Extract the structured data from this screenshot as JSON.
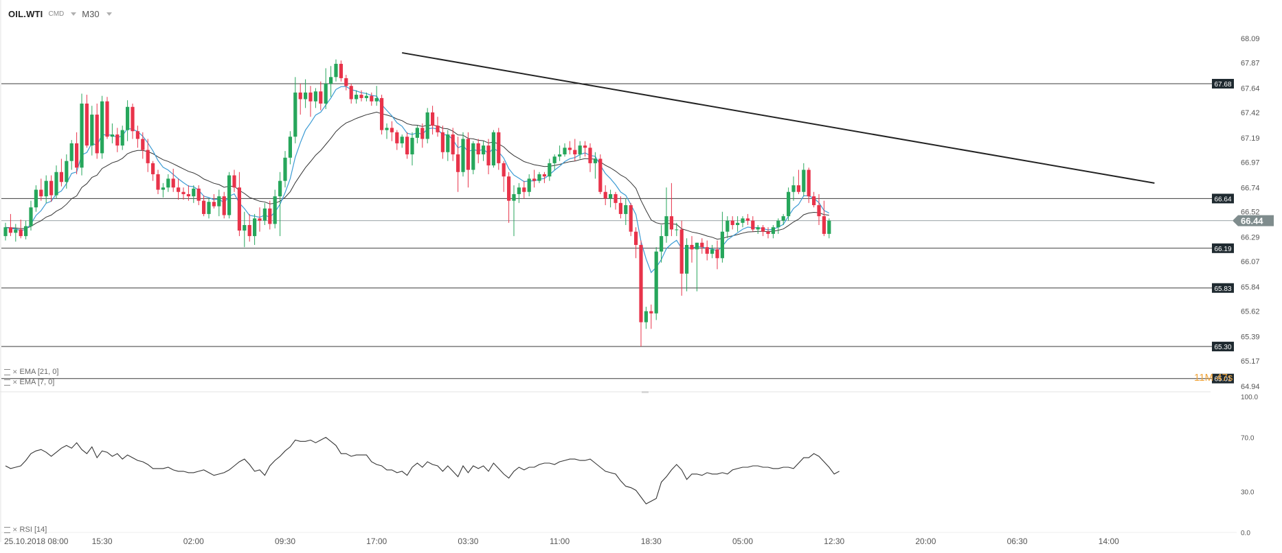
{
  "header": {
    "symbol": "OIL.WTI",
    "type": "CMD",
    "timeframe": "M30"
  },
  "indicators": {
    "ema_slow": "EMA [21, 0]",
    "ema_fast": "EMA [7, 0]",
    "rsi": "RSI [14]"
  },
  "countdown": "11M 47s",
  "colors": {
    "up": "#26a65b",
    "down": "#e8334a",
    "ema_fast": "#3b9bd4",
    "ema_slow": "#333333",
    "trendline": "#222222",
    "label_bg": "#1f2a30",
    "current_bg": "#7f8c8d",
    "countdown": "#f0a43a"
  },
  "chart_data": {
    "type": "candlestick",
    "price_axis": {
      "range": [
        64.94,
        68.09
      ],
      "ticks": [
        "68.09",
        "67.87",
        "67.64",
        "67.42",
        "67.19",
        "66.97",
        "66.74",
        "66.52",
        "66.29",
        "66.07",
        "65.84",
        "65.62",
        "65.39",
        "65.17",
        "64.94"
      ]
    },
    "time_axis": {
      "labels": [
        "25.10.2018  08:00",
        "15:30",
        "02:00",
        "09:30",
        "17:00",
        "03:30",
        "11:00",
        "18:30",
        "05:00",
        "12:30",
        "20:00",
        "06:30",
        "14:00"
      ],
      "label_bar_index": [
        1,
        19,
        37,
        55,
        73,
        91,
        109,
        127,
        145,
        163,
        181,
        199,
        217
      ]
    },
    "horizontal_levels": [
      67.68,
      66.64,
      66.19,
      65.83,
      65.3,
      65.01
    ],
    "level_labels": [
      "67.68",
      "66.64",
      "66.19",
      "65.83",
      "65.30",
      "65.01"
    ],
    "current_price": 66.44,
    "current_label": "66.44",
    "trendline": {
      "from": {
        "bar": 78,
        "price": 67.96
      },
      "to": {
        "bar": 226,
        "price": 66.78
      }
    },
    "ema": [
      "EMA [21, 0]",
      "EMA [7, 0]"
    ],
    "candles_ohlc": [
      [
        66.3,
        66.42,
        66.26,
        66.38
      ],
      [
        66.38,
        66.5,
        66.3,
        66.33
      ],
      [
        66.33,
        66.41,
        66.25,
        66.36
      ],
      [
        66.36,
        66.45,
        66.28,
        66.3
      ],
      [
        66.3,
        66.44,
        66.27,
        66.39
      ],
      [
        66.39,
        66.62,
        66.35,
        66.56
      ],
      [
        66.56,
        66.76,
        66.52,
        66.72
      ],
      [
        66.72,
        66.82,
        66.62,
        66.66
      ],
      [
        66.66,
        66.85,
        66.6,
        66.8
      ],
      [
        66.8,
        66.85,
        66.61,
        66.67
      ],
      [
        66.67,
        66.94,
        66.64,
        66.88
      ],
      [
        66.88,
        67.0,
        66.75,
        66.79
      ],
      [
        66.79,
        67.04,
        66.73,
        66.98
      ],
      [
        66.98,
        67.17,
        66.9,
        67.14
      ],
      [
        67.14,
        67.24,
        66.86,
        66.92
      ],
      [
        66.92,
        67.59,
        66.85,
        67.5
      ],
      [
        67.5,
        67.58,
        67.1,
        67.12
      ],
      [
        67.12,
        67.48,
        67.03,
        67.4
      ],
      [
        67.4,
        67.5,
        67.0,
        67.05
      ],
      [
        67.05,
        67.57,
        67.0,
        67.52
      ],
      [
        67.52,
        67.56,
        67.18,
        67.2
      ],
      [
        67.2,
        67.32,
        67.14,
        67.22
      ],
      [
        67.22,
        67.28,
        67.06,
        67.12
      ],
      [
        67.12,
        67.3,
        67.08,
        67.26
      ],
      [
        67.26,
        67.53,
        67.16,
        67.47
      ],
      [
        67.47,
        67.5,
        67.18,
        67.25
      ],
      [
        67.25,
        67.3,
        67.1,
        67.18
      ],
      [
        67.18,
        67.24,
        67.0,
        67.08
      ],
      [
        67.08,
        67.18,
        66.88,
        66.96
      ],
      [
        66.96,
        66.98,
        66.8,
        66.86
      ],
      [
        66.86,
        66.9,
        66.68,
        66.72
      ],
      [
        66.72,
        66.78,
        66.65,
        66.74
      ],
      [
        66.74,
        66.86,
        66.7,
        66.82
      ],
      [
        66.82,
        66.91,
        66.7,
        66.74
      ],
      [
        66.74,
        66.82,
        66.63,
        66.7
      ],
      [
        66.7,
        66.74,
        66.63,
        66.68
      ],
      [
        66.68,
        66.76,
        66.62,
        66.66
      ],
      [
        66.66,
        66.76,
        66.6,
        66.73
      ],
      [
        66.73,
        66.76,
        66.58,
        66.62
      ],
      [
        66.62,
        66.67,
        66.48,
        66.5
      ],
      [
        66.5,
        66.64,
        66.46,
        66.61
      ],
      [
        66.61,
        66.68,
        66.55,
        66.57
      ],
      [
        66.57,
        66.72,
        66.48,
        66.66
      ],
      [
        66.66,
        66.7,
        66.46,
        66.49
      ],
      [
        66.49,
        66.88,
        66.46,
        66.85
      ],
      [
        66.85,
        66.9,
        66.7,
        66.74
      ],
      [
        66.74,
        66.88,
        66.3,
        66.35
      ],
      [
        66.35,
        66.52,
        66.2,
        66.4
      ],
      [
        66.4,
        66.5,
        66.25,
        66.3
      ],
      [
        66.3,
        66.5,
        66.22,
        66.46
      ],
      [
        66.46,
        66.56,
        66.34,
        66.44
      ],
      [
        66.44,
        66.6,
        66.4,
        66.55
      ],
      [
        66.55,
        66.62,
        66.36,
        66.41
      ],
      [
        66.41,
        66.72,
        66.37,
        66.66
      ],
      [
        66.66,
        66.88,
        66.3,
        66.8
      ],
      [
        66.8,
        67.07,
        66.74,
        67.01
      ],
      [
        67.01,
        67.25,
        66.95,
        67.2
      ],
      [
        67.2,
        67.74,
        67.14,
        67.6
      ],
      [
        67.6,
        67.68,
        67.4,
        67.54
      ],
      [
        67.54,
        67.72,
        67.46,
        67.6
      ],
      [
        67.6,
        67.66,
        67.38,
        67.52
      ],
      [
        67.52,
        67.64,
        67.46,
        67.61
      ],
      [
        67.61,
        67.7,
        67.44,
        67.5
      ],
      [
        67.5,
        67.82,
        67.45,
        67.68
      ],
      [
        67.68,
        67.84,
        67.56,
        67.74
      ],
      [
        67.74,
        67.9,
        67.7,
        67.86
      ],
      [
        67.86,
        67.89,
        67.7,
        67.73
      ],
      [
        67.73,
        67.76,
        67.62,
        67.66
      ],
      [
        67.66,
        67.68,
        67.5,
        67.54
      ],
      [
        67.54,
        67.62,
        67.5,
        67.58
      ],
      [
        67.58,
        67.62,
        67.52,
        67.55
      ],
      [
        67.55,
        67.6,
        67.52,
        67.57
      ],
      [
        67.57,
        67.6,
        67.48,
        67.52
      ],
      [
        67.52,
        67.66,
        67.48,
        67.55
      ],
      [
        67.55,
        67.58,
        67.22,
        67.26
      ],
      [
        67.26,
        67.32,
        67.18,
        67.28
      ],
      [
        67.28,
        67.34,
        67.16,
        67.24
      ],
      [
        67.24,
        67.26,
        67.08,
        67.14
      ],
      [
        67.14,
        67.22,
        67.1,
        67.2
      ],
      [
        67.2,
        67.24,
        67.0,
        67.04
      ],
      [
        67.04,
        67.24,
        66.94,
        67.19
      ],
      [
        67.19,
        67.3,
        67.14,
        67.28
      ],
      [
        67.28,
        67.32,
        67.1,
        67.18
      ],
      [
        67.18,
        67.46,
        67.14,
        67.42
      ],
      [
        67.42,
        67.48,
        67.22,
        67.3
      ],
      [
        67.3,
        67.38,
        67.2,
        67.24
      ],
      [
        67.24,
        67.3,
        67.0,
        67.06
      ],
      [
        67.06,
        67.26,
        66.98,
        67.22
      ],
      [
        67.22,
        67.28,
        66.98,
        67.04
      ],
      [
        67.04,
        67.2,
        66.7,
        66.88
      ],
      [
        66.88,
        67.24,
        66.84,
        67.18
      ],
      [
        67.18,
        67.24,
        66.74,
        66.9
      ],
      [
        66.9,
        67.16,
        66.86,
        67.14
      ],
      [
        67.14,
        67.18,
        66.96,
        67.04
      ],
      [
        67.04,
        67.16,
        66.98,
        67.12
      ],
      [
        67.12,
        67.18,
        66.86,
        66.94
      ],
      [
        66.94,
        67.26,
        66.92,
        67.24
      ],
      [
        67.24,
        67.28,
        66.9,
        66.96
      ],
      [
        66.96,
        66.98,
        66.7,
        66.84
      ],
      [
        66.84,
        66.88,
        66.42,
        66.62
      ],
      [
        66.62,
        66.76,
        66.3,
        66.68
      ],
      [
        66.68,
        66.78,
        66.6,
        66.74
      ],
      [
        66.74,
        66.8,
        66.64,
        66.7
      ],
      [
        66.7,
        66.86,
        66.66,
        66.82
      ],
      [
        66.82,
        66.9,
        66.74,
        66.8
      ],
      [
        66.8,
        66.88,
        66.78,
        66.86
      ],
      [
        66.86,
        66.88,
        66.78,
        66.84
      ],
      [
        66.84,
        67.0,
        66.8,
        66.96
      ],
      [
        66.96,
        67.04,
        66.9,
        67.02
      ],
      [
        67.02,
        67.12,
        66.98,
        67.04
      ],
      [
        67.04,
        67.14,
        67.02,
        67.1
      ],
      [
        67.1,
        67.16,
        67.04,
        67.08
      ],
      [
        67.08,
        67.18,
        66.98,
        67.04
      ],
      [
        67.04,
        67.16,
        67.0,
        67.12
      ],
      [
        67.12,
        67.16,
        67.02,
        67.1
      ],
      [
        67.1,
        67.14,
        66.88,
        66.96
      ],
      [
        66.96,
        67.06,
        66.82,
        67.0
      ],
      [
        67.0,
        67.04,
        66.68,
        66.7
      ],
      [
        66.7,
        66.76,
        66.58,
        66.64
      ],
      [
        66.64,
        66.72,
        66.56,
        66.68
      ],
      [
        66.68,
        66.7,
        66.54,
        66.6
      ],
      [
        66.6,
        66.66,
        66.46,
        66.5
      ],
      [
        66.5,
        66.64,
        66.4,
        66.58
      ],
      [
        66.58,
        66.6,
        66.3,
        66.34
      ],
      [
        66.34,
        66.38,
        66.1,
        66.22
      ],
      [
        66.22,
        66.26,
        65.3,
        65.52
      ],
      [
        65.52,
        65.66,
        65.46,
        65.62
      ],
      [
        65.62,
        65.68,
        65.46,
        65.6
      ],
      [
        65.6,
        66.2,
        65.54,
        66.16
      ],
      [
        66.16,
        66.4,
        66.06,
        66.3
      ],
      [
        66.3,
        66.74,
        66.24,
        66.48
      ],
      [
        66.48,
        66.78,
        66.3,
        66.36
      ],
      [
        66.36,
        66.42,
        66.3,
        66.36
      ],
      [
        66.36,
        66.44,
        65.76,
        65.96
      ],
      [
        65.96,
        66.28,
        65.8,
        66.22
      ],
      [
        66.22,
        66.3,
        66.06,
        66.18
      ],
      [
        66.18,
        66.24,
        65.8,
        66.24
      ],
      [
        66.24,
        66.28,
        66.14,
        66.2
      ],
      [
        66.2,
        66.26,
        66.08,
        66.14
      ],
      [
        66.14,
        66.22,
        66.1,
        66.18
      ],
      [
        66.18,
        66.26,
        66.0,
        66.1
      ],
      [
        66.1,
        66.52,
        66.06,
        66.34
      ],
      [
        66.34,
        66.48,
        66.28,
        66.44
      ],
      [
        66.44,
        66.48,
        66.36,
        66.4
      ],
      [
        66.4,
        66.48,
        66.34,
        66.42
      ],
      [
        66.42,
        66.48,
        66.38,
        66.46
      ],
      [
        66.46,
        66.5,
        66.4,
        66.44
      ],
      [
        66.44,
        66.48,
        66.34,
        66.36
      ],
      [
        66.36,
        66.4,
        66.32,
        66.38
      ],
      [
        66.38,
        66.4,
        66.3,
        66.34
      ],
      [
        66.34,
        66.38,
        66.28,
        66.32
      ],
      [
        66.32,
        66.4,
        66.28,
        66.38
      ],
      [
        66.38,
        66.46,
        66.32,
        66.44
      ],
      [
        66.44,
        66.5,
        66.4,
        66.48
      ],
      [
        66.48,
        66.74,
        66.44,
        66.7
      ],
      [
        66.7,
        66.84,
        66.62,
        66.76
      ],
      [
        66.76,
        66.9,
        66.68,
        66.7
      ],
      [
        66.7,
        66.96,
        66.66,
        66.9
      ],
      [
        66.9,
        66.92,
        66.6,
        66.66
      ],
      [
        66.66,
        66.7,
        66.56,
        66.58
      ],
      [
        66.58,
        66.68,
        66.4,
        66.48
      ],
      [
        66.48,
        66.62,
        66.3,
        66.32
      ],
      [
        66.32,
        66.46,
        66.28,
        66.44
      ]
    ],
    "rsi_axis": {
      "range": [
        0,
        100
      ],
      "ticks": [
        "100.0",
        "70.0",
        "30.0",
        "0.0"
      ]
    },
    "rsi_values": [
      49,
      47,
      48,
      49,
      53,
      58,
      60,
      61,
      59,
      56,
      59,
      62,
      64,
      62,
      66,
      61,
      58,
      63,
      55,
      60,
      59,
      56,
      58,
      54,
      57,
      55,
      53,
      52,
      50,
      47,
      47,
      47,
      48,
      46,
      45,
      45,
      44,
      44,
      45,
      46,
      44,
      42,
      43,
      44,
      46,
      49,
      52,
      54,
      50,
      45,
      46,
      42,
      49,
      53,
      56,
      60,
      63,
      68,
      67,
      67,
      68,
      66,
      68,
      70,
      67,
      64,
      58,
      58,
      56,
      57,
      57,
      57,
      52,
      50,
      49,
      46,
      46,
      44,
      45,
      42,
      48,
      51,
      48,
      52,
      50,
      49,
      45,
      49,
      45,
      41,
      49,
      44,
      49,
      47,
      49,
      45,
      51,
      47,
      43,
      40,
      45,
      48,
      46,
      48,
      48,
      50,
      51,
      51,
      50,
      52,
      53,
      54,
      54,
      53,
      53,
      54,
      51,
      48,
      45,
      44,
      43,
      38,
      34,
      33,
      31,
      26,
      21,
      23,
      25,
      37,
      41,
      46,
      50,
      46,
      39,
      43,
      43,
      42,
      44,
      43,
      43,
      44,
      43,
      46,
      47,
      48,
      48,
      49,
      49,
      48,
      48,
      47,
      47,
      48,
      48,
      47,
      51,
      55,
      55,
      58,
      56,
      52,
      48,
      43,
      45
    ]
  }
}
